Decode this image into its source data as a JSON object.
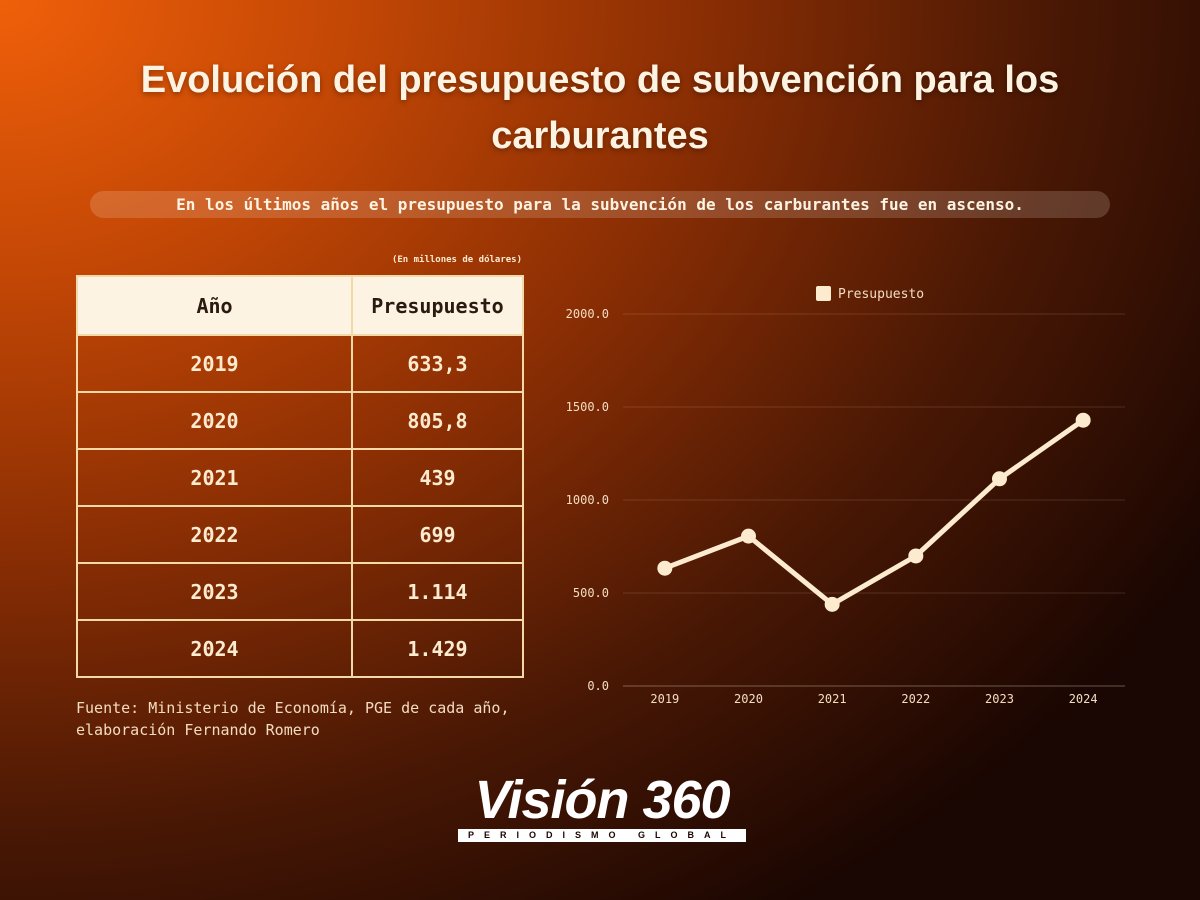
{
  "header": {
    "title": "Evolución del presupuesto de subvención para los carburantes",
    "subtitle": "En los últimos años el presupuesto para la subvención de los carburantes fue en ascenso."
  },
  "table": {
    "units_note": "(En millones de dólares)",
    "headers": [
      "Año",
      "Presupuesto"
    ],
    "rows": [
      [
        "2019",
        "633,3"
      ],
      [
        "2020",
        "805,8"
      ],
      [
        "2021",
        "439"
      ],
      [
        "2022",
        "699"
      ],
      [
        "2023",
        "1.114"
      ],
      [
        "2024",
        "1.429"
      ]
    ]
  },
  "source": "Fuente: Ministerio de Economía, PGE de cada año, elaboración Fernando Romero",
  "chart_data": {
    "type": "line",
    "categories": [
      "2019",
      "2020",
      "2021",
      "2022",
      "2023",
      "2024"
    ],
    "series": [
      {
        "name": "Presupuesto",
        "values": [
          633.3,
          805.8,
          439,
          699,
          1114,
          1429
        ]
      }
    ],
    "ylim": [
      0,
      2000
    ],
    "yticks": [
      "0.0",
      "500.0",
      "1000.0",
      "1500.0",
      "2000.0"
    ],
    "legend": "top",
    "grid": true,
    "line_color": "#fdebd0"
  },
  "logo": {
    "name": "Visión 360",
    "tagline": "PERIODISMO GLOBAL"
  }
}
